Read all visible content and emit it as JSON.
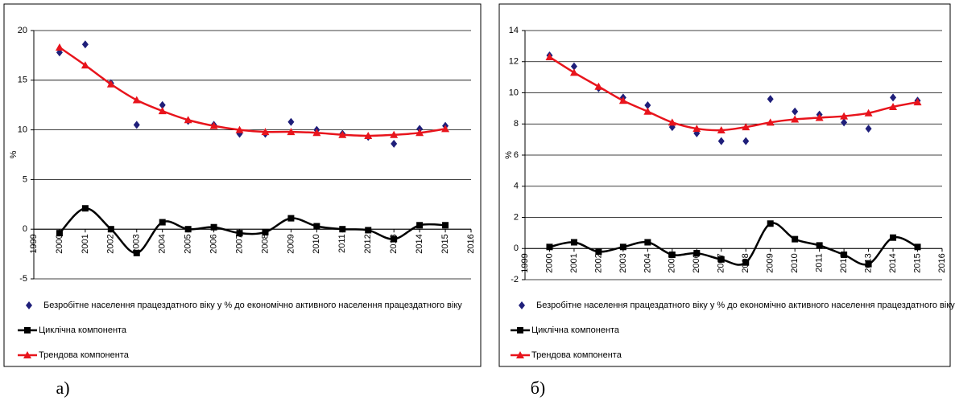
{
  "chart_data": [
    {
      "type": "line",
      "caption": "а)",
      "y_label": "%",
      "x": [
        2000,
        2001,
        2002,
        2003,
        2004,
        2005,
        2006,
        2007,
        2008,
        2009,
        2010,
        2011,
        2012,
        2013,
        2014,
        2015
      ],
      "xlim": [
        1999,
        2016
      ],
      "xticks": [
        1999,
        2000,
        2001,
        2002,
        2003,
        2004,
        2005,
        2006,
        2007,
        2008,
        2009,
        2010,
        2011,
        2012,
        2013,
        2014,
        2015,
        2016
      ],
      "ylim": [
        -5,
        20
      ],
      "yticks": [
        -5,
        0,
        5,
        10,
        15,
        20
      ],
      "grid": true,
      "series": [
        {
          "name": "Безробітне населення працездатного віку у % до економічно активного населення працездатного віку",
          "color": "#1f1f7a",
          "marker": "diamond",
          "line": false,
          "values": [
            17.8,
            18.6,
            14.7,
            10.5,
            12.5,
            10.9,
            10.5,
            9.6,
            9.6,
            10.8,
            10.0,
            9.6,
            9.3,
            8.6,
            10.1,
            10.4
          ]
        },
        {
          "name": "Циклічна компонента",
          "color": "#000000",
          "marker": "square",
          "line": true,
          "values": [
            -0.4,
            2.1,
            0.0,
            -2.4,
            0.7,
            0.0,
            0.2,
            -0.4,
            -0.3,
            1.1,
            0.3,
            0.0,
            -0.1,
            -1.0,
            0.4,
            0.4
          ]
        },
        {
          "name": "Трендова компонента",
          "color": "#e8141c",
          "marker": "triangle",
          "line": true,
          "values": [
            18.3,
            16.5,
            14.6,
            13.0,
            11.9,
            11.0,
            10.4,
            10.0,
            9.8,
            9.8,
            9.7,
            9.5,
            9.4,
            9.5,
            9.7,
            10.1
          ]
        }
      ]
    },
    {
      "type": "line",
      "caption": "б)",
      "y_label": "%",
      "x": [
        2000,
        2001,
        2002,
        2003,
        2004,
        2005,
        2006,
        2007,
        2008,
        2009,
        2010,
        2011,
        2012,
        2013,
        2014,
        2015
      ],
      "xlim": [
        1999,
        2016
      ],
      "xticks": [
        1999,
        2000,
        2001,
        2002,
        2003,
        2004,
        2005,
        2006,
        2007,
        2008,
        2009,
        2010,
        2011,
        2012,
        2013,
        2014,
        2015,
        2016
      ],
      "ylim": [
        -2,
        14
      ],
      "yticks": [
        -2,
        0,
        2,
        4,
        6,
        8,
        10,
        12,
        14
      ],
      "grid": true,
      "series": [
        {
          "name": "Безробітне населення працездатного віку у % до економічно активного населення працездатного віку",
          "color": "#1f1f7a",
          "marker": "diamond",
          "line": false,
          "values": [
            12.4,
            11.7,
            10.3,
            9.7,
            9.2,
            7.8,
            7.4,
            6.9,
            6.9,
            9.6,
            8.8,
            8.6,
            8.1,
            7.7,
            9.7,
            9.5
          ]
        },
        {
          "name": "Циклічна компонента",
          "color": "#000000",
          "marker": "square",
          "line": true,
          "values": [
            0.1,
            0.4,
            -0.2,
            0.1,
            0.4,
            -0.4,
            -0.3,
            -0.7,
            -0.9,
            1.6,
            0.6,
            0.2,
            -0.4,
            -1.0,
            0.7,
            0.1
          ]
        },
        {
          "name": "Трендова компонента",
          "color": "#e8141c",
          "marker": "triangle",
          "line": true,
          "values": [
            12.3,
            11.3,
            10.4,
            9.5,
            8.8,
            8.1,
            7.7,
            7.6,
            7.8,
            8.1,
            8.3,
            8.4,
            8.5,
            8.7,
            9.1,
            9.4
          ]
        }
      ]
    }
  ]
}
